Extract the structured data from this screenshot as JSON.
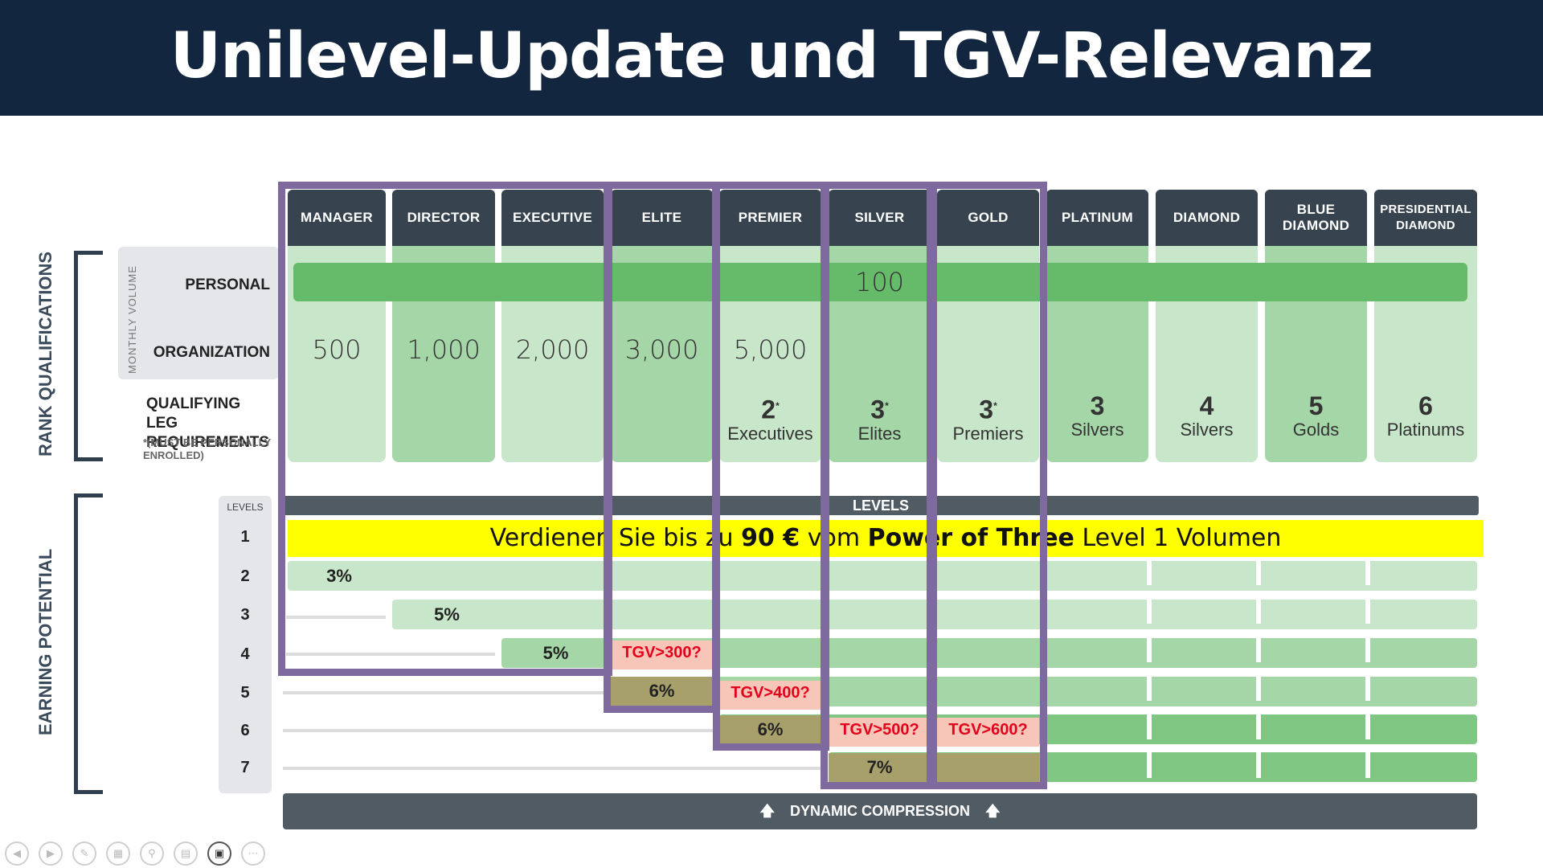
{
  "title": "Unilevel-Update und TGV-Relevanz",
  "ranks": [
    "MANAGER",
    "DIRECTOR",
    "EXECUTIVE",
    "ELITE",
    "PREMIER",
    "SILVER",
    "GOLD",
    "PLATINUM",
    "DIAMOND",
    "BLUE DIAMOND",
    "PRESIDENTIAL DIAMOND"
  ],
  "section_labels": {
    "rank_qualifications": "RANK QUALIFICATIONS",
    "earning_potential": "EARNING POTENTIAL",
    "monthly_volume": "MONTHLY VOLUME"
  },
  "row_labels": {
    "personal": "PERSONAL",
    "organization": "ORGANIZATION",
    "qualifying_leg_1": "QUALIFYING LEG",
    "qualifying_leg_2": "REQUIREMENTS",
    "qualifying_note_1": "*(MUST BE PERSONALLY",
    "qualifying_note_2": "ENROLLED)"
  },
  "personal_volume": "100",
  "organization_volume": [
    "500",
    "1,000",
    "2,000",
    "3,000",
    "5,000"
  ],
  "leg_requirements": [
    {
      "count": "2",
      "mark": "*",
      "label": "Executives"
    },
    {
      "count": "3",
      "mark": "*",
      "label": "Elites"
    },
    {
      "count": "3",
      "mark": "*",
      "label": "Premiers"
    },
    {
      "count": "3",
      "mark": "",
      "label": "Silvers"
    },
    {
      "count": "4",
      "mark": "",
      "label": "Silvers"
    },
    {
      "count": "5",
      "mark": "",
      "label": "Golds"
    },
    {
      "count": "6",
      "mark": "",
      "label": "Platinums"
    }
  ],
  "levels_bar_label": "LEVELS",
  "levels_header": "LEVELS",
  "levels": [
    "1",
    "2",
    "3",
    "4",
    "5",
    "6",
    "7"
  ],
  "level1_banner": {
    "part1": "Verdienen Sie bis zu ",
    "bold1": "90 €",
    "part2": " vom ",
    "bold2": "Power of Three",
    "part3": " Level 1 Volumen"
  },
  "percentages": {
    "manager_l2": "3%",
    "director_l3": "5%",
    "executive_l4": "5%",
    "elite_l5": "6%",
    "premier_l6": "6%",
    "silver_l7": "7%"
  },
  "tgv_notes": {
    "elite": "TGV>300?",
    "premier": "TGV>400?",
    "silver": "TGV>500?",
    "gold": "TGV>600?"
  },
  "dynamic_compression": "DYNAMIC COMPRESSION",
  "colors": {
    "header_bg": "#12263f",
    "rank_header": "#37444f",
    "light_green": "#c8e6c9",
    "dark_green": "#a5d6a7",
    "bar_green": "#66bb6a",
    "banner_yellow": "#ffff00",
    "highlight_purple": "#7e6a9e",
    "tgv_red": "#e3001b"
  }
}
